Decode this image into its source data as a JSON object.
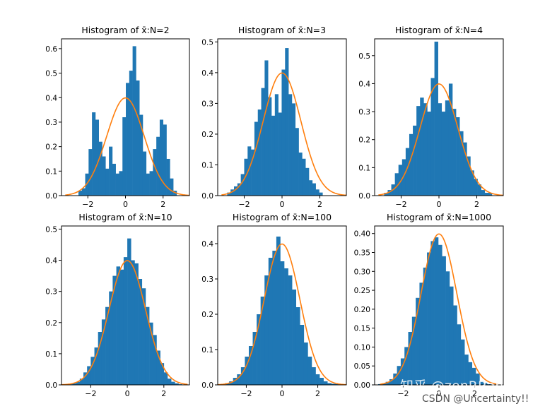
{
  "watermarks": {
    "zhihu": "知乎 @zenRRan",
    "csdn": "CSDN @Uncertainty!!"
  },
  "colors": {
    "bars": "#1f77b4",
    "curve": "#ff7f0e",
    "axes": "#000000"
  },
  "chart_data": [
    {
      "type": "bar",
      "title": "Histogram of x̄:N=2",
      "xlabel": "",
      "ylabel": "",
      "xlim": [
        -3.4,
        3.4
      ],
      "ylim": [
        0,
        0.64
      ],
      "xticks": [
        -2,
        0,
        2
      ],
      "xtick_labels": [
        "−2",
        "0",
        "2"
      ],
      "yticks": [
        0,
        0.1,
        0.2,
        0.3,
        0.4,
        0.5,
        0.6
      ],
      "ytick_labels": [
        "0.0",
        "0.1",
        "0.2",
        "0.3",
        "0.4",
        "0.5",
        "0.6"
      ],
      "bin_start": -2.5,
      "bin_width": 0.18,
      "values": [
        0.02,
        0.03,
        0.09,
        0.19,
        0.34,
        0.31,
        0.22,
        0.16,
        0.11,
        0.2,
        0.13,
        0.09,
        0.1,
        0.32,
        0.46,
        0.51,
        0.61,
        0.47,
        0.33,
        0.18,
        0.09,
        0.1,
        0.19,
        0.24,
        0.31,
        0.29,
        0.15,
        0.07,
        0.02
      ],
      "curve": {
        "type": "normal-pdf",
        "mean": 0,
        "sd": 1,
        "range": [
          -3.2,
          3.4
        ]
      }
    },
    {
      "type": "bar",
      "title": "Histogram of x̄:N=3",
      "xlabel": "",
      "ylabel": "",
      "xlim": [
        -3.4,
        3.4
      ],
      "ylim": [
        0,
        0.51
      ],
      "xticks": [
        -2,
        0,
        2
      ],
      "xtick_labels": [
        "−2",
        "0",
        "2"
      ],
      "yticks": [
        0,
        0.1,
        0.2,
        0.3,
        0.4,
        0.5
      ],
      "ytick_labels": [
        "0.0",
        "0.1",
        "0.2",
        "0.3",
        "0.4",
        "0.5"
      ],
      "bin_start": -2.9,
      "bin_width": 0.18,
      "values": [
        0.01,
        0.02,
        0.03,
        0.04,
        0.07,
        0.12,
        0.16,
        0.15,
        0.24,
        0.28,
        0.35,
        0.44,
        0.32,
        0.26,
        0.33,
        0.27,
        0.41,
        0.48,
        0.33,
        0.3,
        0.22,
        0.14,
        0.12,
        0.09,
        0.05,
        0.04,
        0.02,
        0.01
      ],
      "curve": {
        "type": "normal-pdf",
        "mean": 0,
        "sd": 1,
        "range": [
          -3.2,
          3.4
        ]
      }
    },
    {
      "type": "bar",
      "title": "Histogram of x̄:N=4",
      "xlabel": "",
      "ylabel": "",
      "xlim": [
        -3.4,
        3.4
      ],
      "ylim": [
        0,
        0.56
      ],
      "xticks": [
        -2,
        0,
        2
      ],
      "xtick_labels": [
        "−2",
        "0",
        "2"
      ],
      "yticks": [
        0,
        0.1,
        0.2,
        0.3,
        0.4,
        0.5
      ],
      "ytick_labels": [
        "0.0",
        "0.1",
        "0.2",
        "0.3",
        "0.4",
        "0.5"
      ],
      "bin_start": -2.9,
      "bin_width": 0.19,
      "values": [
        0.01,
        0.02,
        0.04,
        0.08,
        0.11,
        0.13,
        0.17,
        0.22,
        0.25,
        0.32,
        0.35,
        0.33,
        0.3,
        0.42,
        0.55,
        0.33,
        0.3,
        0.34,
        0.4,
        0.31,
        0.28,
        0.23,
        0.19,
        0.14,
        0.09,
        0.06,
        0.04,
        0.02,
        0.01,
        0.01
      ],
      "curve": {
        "type": "normal-pdf",
        "mean": 0,
        "sd": 1,
        "range": [
          -3.2,
          3.4
        ]
      }
    },
    {
      "type": "bar",
      "title": "Histogram of x̄:N=10",
      "xlabel": "",
      "ylabel": "",
      "xlim": [
        -3.6,
        3.4
      ],
      "ylim": [
        0,
        0.51
      ],
      "xticks": [
        -2,
        0,
        2
      ],
      "xtick_labels": [
        "−2",
        "0",
        "2"
      ],
      "yticks": [
        0,
        0.1,
        0.2,
        0.3,
        0.4,
        0.5
      ],
      "ytick_labels": [
        "0.0",
        "0.1",
        "0.2",
        "0.3",
        "0.4",
        "0.5"
      ],
      "bin_start": -3.2,
      "bin_width": 0.2,
      "values": [
        0.002,
        0.005,
        0.01,
        0.02,
        0.04,
        0.06,
        0.09,
        0.12,
        0.17,
        0.21,
        0.25,
        0.3,
        0.35,
        0.38,
        0.37,
        0.41,
        0.47,
        0.4,
        0.39,
        0.34,
        0.31,
        0.25,
        0.2,
        0.16,
        0.11,
        0.07,
        0.04,
        0.02,
        0.01,
        0.005,
        0.002
      ],
      "curve": {
        "type": "normal-pdf",
        "mean": 0,
        "sd": 1,
        "range": [
          -3.6,
          3.3
        ]
      }
    },
    {
      "type": "bar",
      "title": "Histogram of x̄:N=100",
      "xlabel": "",
      "ylabel": "",
      "xlim": [
        -3.6,
        3.6
      ],
      "ylim": [
        0,
        0.45
      ],
      "xticks": [
        -2,
        0,
        2
      ],
      "xtick_labels": [
        "−2",
        "0",
        "2"
      ],
      "yticks": [
        0,
        0.1,
        0.2,
        0.3,
        0.4
      ],
      "ytick_labels": [
        "0.0",
        "0.1",
        "0.2",
        "0.3",
        "0.4"
      ],
      "bin_start": -3.4,
      "bin_width": 0.22,
      "values": [
        0.003,
        0.005,
        0.01,
        0.02,
        0.03,
        0.05,
        0.08,
        0.11,
        0.15,
        0.2,
        0.25,
        0.31,
        0.36,
        0.38,
        0.42,
        0.35,
        0.33,
        0.31,
        0.27,
        0.22,
        0.17,
        0.12,
        0.08,
        0.05,
        0.03,
        0.02,
        0.01,
        0.005,
        0.003,
        0.002
      ],
      "curve": {
        "type": "normal-pdf",
        "mean": 0,
        "sd": 1,
        "range": [
          -3.6,
          3.6
        ]
      }
    },
    {
      "type": "bar",
      "title": "Histogram of x̄:N=1000",
      "xlabel": "",
      "ylabel": "",
      "xlim": [
        -3.6,
        3.6
      ],
      "ylim": [
        0,
        0.42
      ],
      "xticks": [
        -2,
        0,
        2
      ],
      "xtick_labels": [
        "−2",
        "0",
        "2"
      ],
      "yticks": [
        0,
        0.05,
        0.1,
        0.15,
        0.2,
        0.25,
        0.3,
        0.35,
        0.4
      ],
      "ytick_labels": [
        "0.00",
        "0.05",
        "0.10",
        "0.15",
        "0.20",
        "0.25",
        "0.30",
        "0.35",
        "0.40"
      ],
      "bin_start": -3.4,
      "bin_width": 0.21,
      "values": [
        0.002,
        0.004,
        0.008,
        0.015,
        0.03,
        0.05,
        0.07,
        0.1,
        0.14,
        0.18,
        0.23,
        0.27,
        0.31,
        0.35,
        0.38,
        0.39,
        0.37,
        0.34,
        0.3,
        0.26,
        0.21,
        0.16,
        0.12,
        0.08,
        0.06,
        0.045,
        0.03,
        0.01,
        0.005,
        0.002
      ],
      "curve": {
        "type": "normal-pdf",
        "mean": 0,
        "sd": 1,
        "range": [
          -3.3,
          3.3
        ]
      }
    }
  ]
}
